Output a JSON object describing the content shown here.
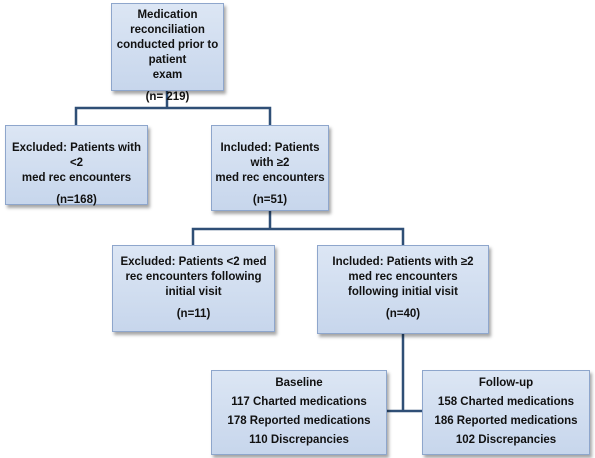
{
  "flowchart": {
    "top": {
      "lines": [
        "Medication reconciliation",
        "conducted prior to patient",
        "exam"
      ],
      "count": "(n= 219)"
    },
    "excluded_1": {
      "lines": [
        "Excluded: Patients with <2",
        "med rec encounters"
      ],
      "count": "(n=168)"
    },
    "included_1": {
      "lines": [
        "Included: Patients with ≥2",
        "med rec encounters"
      ],
      "count": "(n=51)"
    },
    "excluded_2": {
      "lines": [
        "Excluded: Patients <2 med",
        "rec encounters following",
        "initial visit"
      ],
      "count": "(n=11)"
    },
    "included_2": {
      "lines": [
        "Included: Patients with ≥2",
        "med rec encounters",
        "following initial visit"
      ],
      "count": "(n=40)"
    },
    "baseline": {
      "title": "Baseline",
      "lines": [
        "117 Charted medications",
        "178 Reported medications",
        "110 Discrepancies"
      ]
    },
    "followup": {
      "title": "Follow-up",
      "lines": [
        "158 Charted medications",
        "186 Reported medications",
        "102 Discrepancies"
      ]
    }
  },
  "colors": {
    "box_fill_top": "#dce6f4",
    "box_fill_bottom": "#c7d6ec",
    "box_border": "#8ea6cc",
    "connector": "#2f4f76"
  }
}
